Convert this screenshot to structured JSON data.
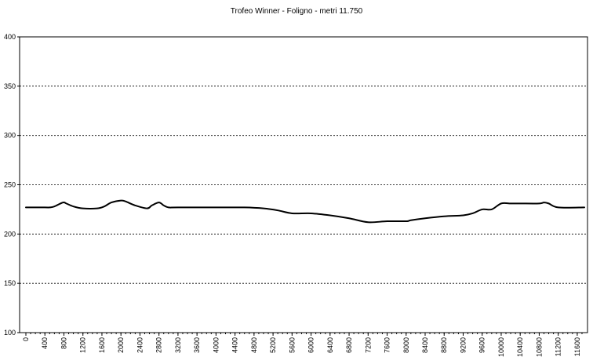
{
  "chart_data": {
    "type": "line",
    "title": "Trofeo Winner - Foligno - metri 11.750",
    "xlabel": "",
    "ylabel": "",
    "ylim": [
      100,
      400
    ],
    "xlim": [
      0,
      11750
    ],
    "y_ticks": [
      100,
      150,
      200,
      250,
      300,
      350,
      400
    ],
    "x_ticks": [
      0,
      400,
      800,
      1200,
      1600,
      2000,
      2400,
      2800,
      3200,
      3600,
      4000,
      4400,
      4800,
      5200,
      5600,
      6000,
      6400,
      6800,
      7200,
      7600,
      8000,
      8400,
      8800,
      9200,
      9600,
      10000,
      10400,
      10800,
      11200,
      11600
    ],
    "grid": "horizontal dotted",
    "legend": "none",
    "series": [
      {
        "x": [
          0,
          400,
          500,
          600,
          780,
          850,
          1000,
          1200,
          1500,
          1650,
          1800,
          2000,
          2100,
          2300,
          2550,
          2650,
          2800,
          2900,
          3000,
          3200,
          4000,
          4600,
          5000,
          5300,
          5600,
          6000,
          6400,
          6800,
          7200,
          7600,
          8000,
          8100,
          8400,
          8800,
          9200,
          9400,
          9600,
          9800,
          10000,
          10200,
          10400,
          10800,
          10900,
          11000,
          11200,
          11750
        ],
        "y": [
          227,
          227,
          227,
          228,
          232,
          231,
          228,
          226,
          226,
          228,
          232,
          234,
          233,
          229,
          226,
          229,
          232,
          229,
          227,
          227,
          227,
          227,
          226,
          224,
          221,
          221,
          219,
          216,
          212,
          213,
          213,
          214,
          216,
          218,
          219,
          221,
          225,
          225,
          231,
          231,
          231,
          231,
          232,
          231,
          227,
          227
        ],
        "color": "#000000"
      }
    ]
  }
}
